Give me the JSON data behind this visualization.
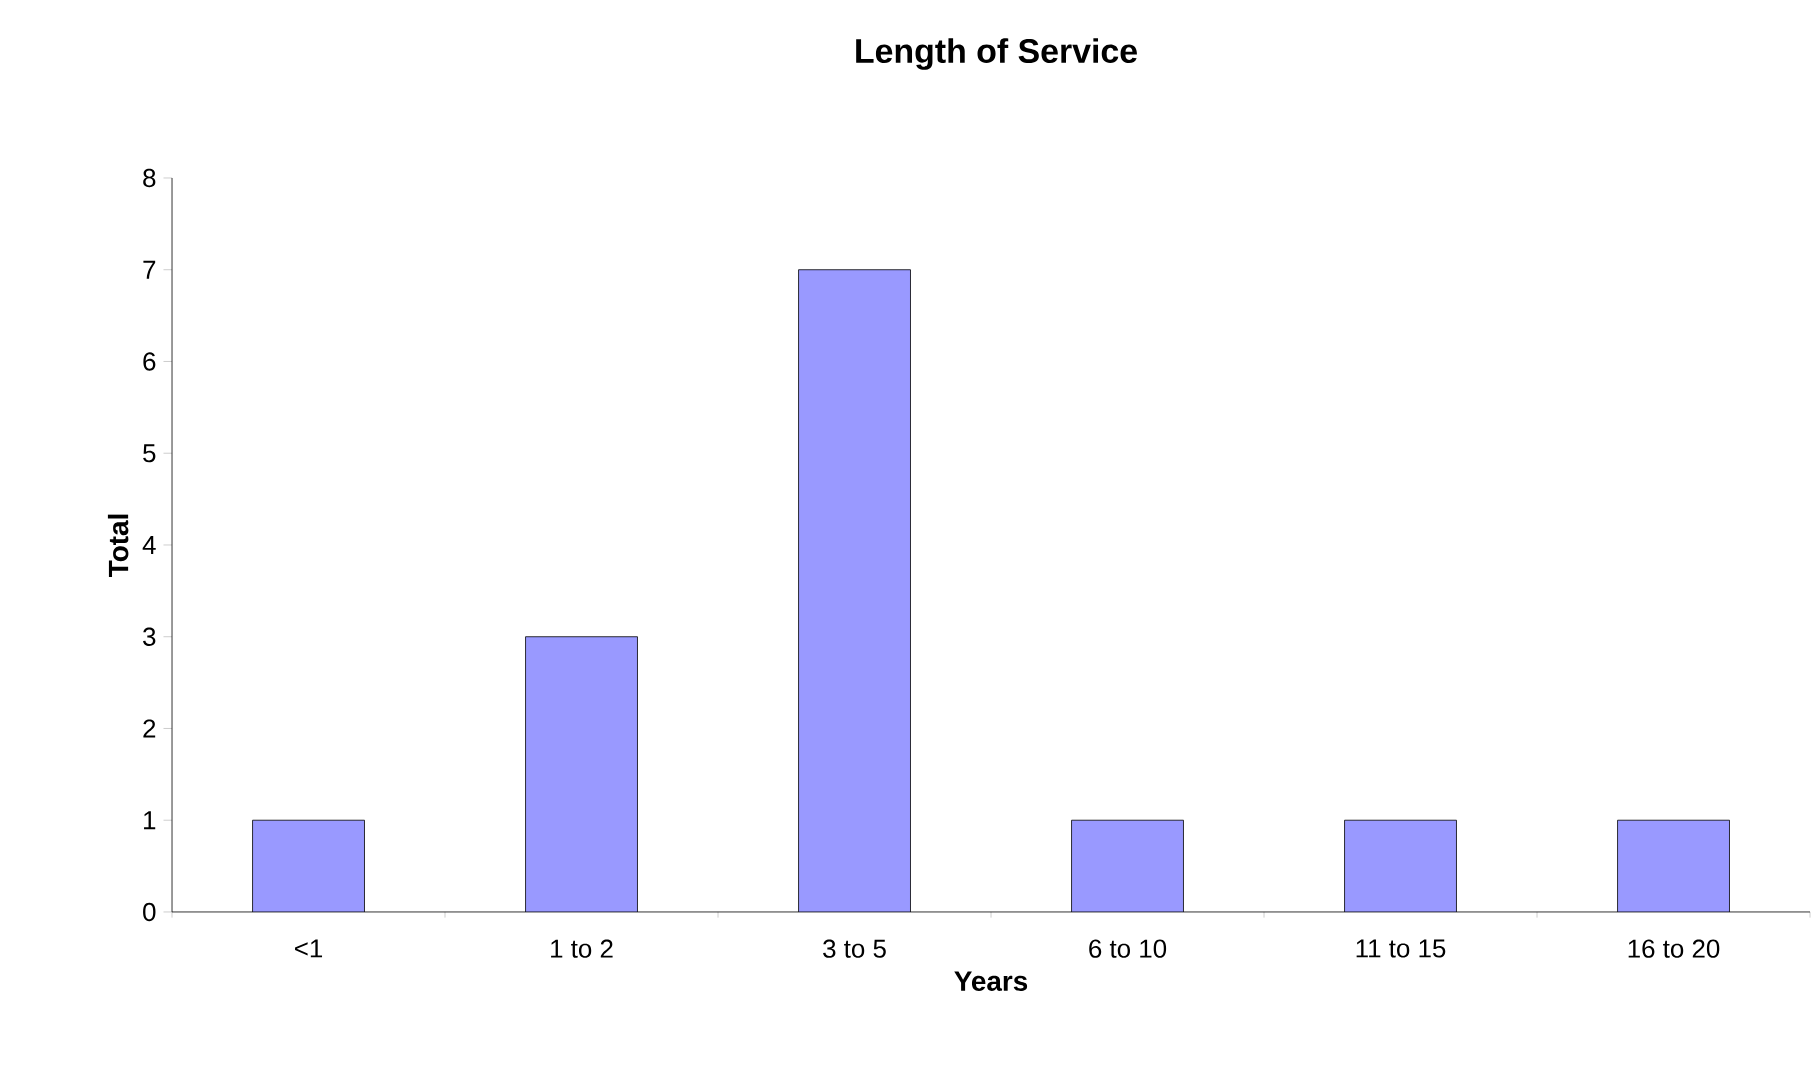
{
  "chart_data": {
    "type": "bar",
    "title": "Length of Service",
    "xlabel": "Years",
    "ylabel": "Total",
    "categories": [
      "<1",
      "1 to 2",
      "3 to 5",
      "6 to 10",
      "11 to 15",
      "16 to 20"
    ],
    "values": [
      1,
      3,
      7,
      1,
      1,
      1
    ],
    "color": "#9999ff",
    "ylim": [
      0,
      8
    ],
    "yticks": [
      0,
      1,
      2,
      3,
      4,
      5,
      6,
      7,
      8
    ]
  }
}
